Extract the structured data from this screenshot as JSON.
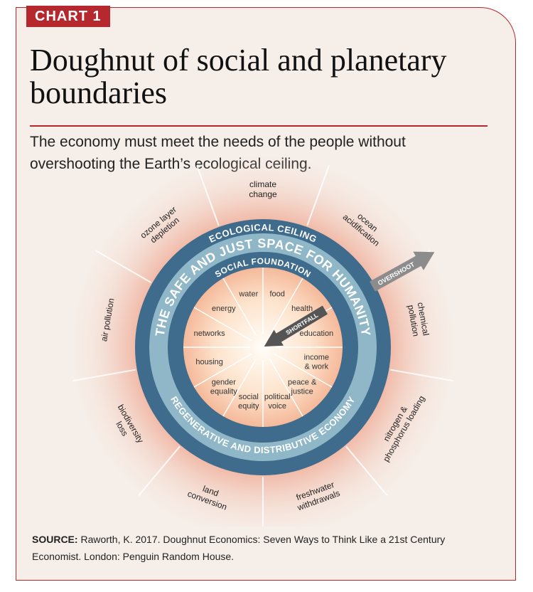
{
  "header": {
    "label": "CHART 1",
    "title": "Doughnut of social and planetary boundaries",
    "subtitle": "The economy must meet the needs of the people without overshooting the Earth’s ecological ceiling."
  },
  "diagram": {
    "ceiling_label": "ECOLOGICAL CEILING",
    "space_label": "THE SAFE AND JUST SPACE FOR HUMANITY",
    "foundation_label": "SOCIAL FOUNDATION",
    "economy_label": "REGENERATIVE AND DISTRIBUTIVE ECONOMY",
    "overshoot_label": "OVERSHOOT",
    "shortfall_label": "SHORTFALL",
    "social": [
      [
        "food"
      ],
      [
        "health"
      ],
      [
        "education"
      ],
      [
        "income",
        "& work"
      ],
      [
        "peace &",
        "justice"
      ],
      [
        "political",
        "voice"
      ],
      [
        "social",
        "equity"
      ],
      [
        "gender",
        "equality"
      ],
      [
        "housing"
      ],
      [
        "networks"
      ],
      [
        "energy"
      ],
      [
        "water"
      ]
    ],
    "planetary": [
      [
        "climate",
        "change"
      ],
      [
        "ocean",
        "acidification"
      ],
      [
        "chemical",
        "pollution"
      ],
      [
        "nitrogen &",
        "phosphorus loading"
      ],
      [
        "freshwater",
        "withdrawals"
      ],
      [
        "land",
        "conversion"
      ],
      [
        "biodiversity",
        "loss"
      ],
      [
        "air pollution"
      ],
      [
        "ozone layer",
        "depletion"
      ]
    ]
  },
  "footer": {
    "source_label": "SOURCE:",
    "source": "Raworth, K. 2017. Doughnut Economics: Seven Ways to Think Like a 21st Century Economist. London: Penguin Random House."
  }
}
